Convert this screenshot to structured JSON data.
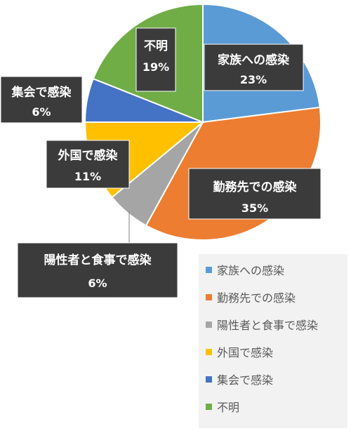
{
  "chart_data": {
    "type": "pie",
    "categories": [
      "家族への感染",
      "勤務先での感染",
      "陽性者と食事で感染",
      "外国で感染",
      "集会で感染",
      "不明"
    ],
    "values": [
      23,
      35,
      6,
      11,
      6,
      19
    ],
    "value_labels": [
      "23%",
      "35%",
      "6%",
      "11%",
      "6%",
      "19%"
    ],
    "colors": [
      "#5b9bd5",
      "#ed7d31",
      "#a5a5a5",
      "#ffc000",
      "#4472c4",
      "#70ad47"
    ],
    "legend_position": "bottom-right"
  }
}
